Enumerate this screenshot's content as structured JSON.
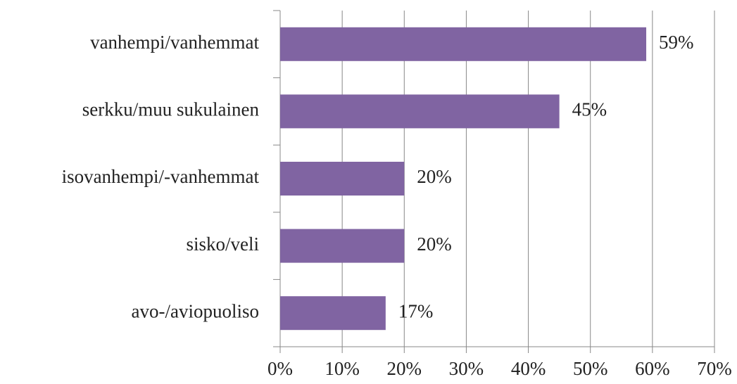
{
  "chart_data": {
    "type": "bar",
    "orientation": "horizontal",
    "categories": [
      "vanhempi/vanhemmat",
      "serkku/muu sukulainen",
      "isovanhempi/-vanhemmat",
      "sisko/veli",
      "avo-/aviopuoliso"
    ],
    "values": [
      59,
      45,
      20,
      20,
      17
    ],
    "value_labels": [
      "59%",
      "45%",
      "20%",
      "20%",
      "17%"
    ],
    "color": "#8064a2",
    "xlim": [
      0,
      70
    ],
    "xticks": [
      {
        "value": 0,
        "label": "0%"
      },
      {
        "value": 10,
        "label": "10%"
      },
      {
        "value": 20,
        "label": "20%"
      },
      {
        "value": 30,
        "label": "30%"
      },
      {
        "value": 40,
        "label": "40%"
      },
      {
        "value": 50,
        "label": "50%"
      },
      {
        "value": 60,
        "label": "60%"
      },
      {
        "value": 70,
        "label": "70%"
      }
    ],
    "grid": true
  }
}
